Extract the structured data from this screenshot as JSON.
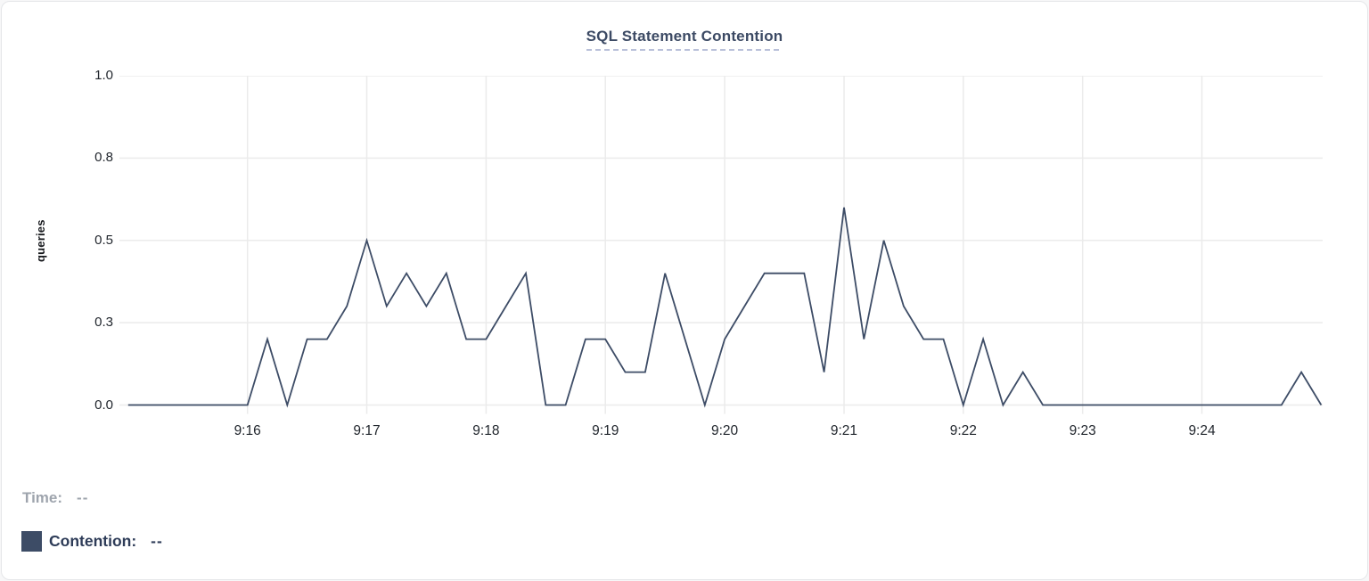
{
  "chart": {
    "title": "SQL Statement Contention"
  },
  "y_axis": {
    "label": "queries",
    "tick_labels": [
      "1.0",
      "0.8",
      "0.5",
      "0.3",
      "0.0"
    ],
    "tick_values": [
      1.0,
      0.75,
      0.5,
      0.25,
      0
    ]
  },
  "x_axis": {
    "tick_labels": [
      "9:16",
      "9:17",
      "9:18",
      "9:19",
      "9:20",
      "9:21",
      "9:22",
      "9:23",
      "9:24"
    ]
  },
  "legend": {
    "time_label": "Time:",
    "time_value": "--",
    "contention_label": "Contention:",
    "contention_value": "--"
  },
  "colors": {
    "line": "#3d4c66",
    "swatch": "#3d4c66",
    "grid": "#ebebeb",
    "title": "#3c4a64",
    "title_underline": "#b9c0d9",
    "time_text": "#9ea4ad",
    "contention_text": "#2e3c58",
    "axis_text": "#22272e"
  },
  "chart_data": {
    "type": "line",
    "title": "SQL Statement Contention",
    "xlabel": "",
    "ylabel": "queries",
    "ylim": [
      0,
      1.0
    ],
    "y_tick_values": [
      0,
      0.25,
      0.5,
      0.75,
      1.0
    ],
    "y_tick_labels": [
      "0.0",
      "0.3",
      "0.5",
      "0.8",
      "1.0"
    ],
    "x_start": "9:15:00",
    "x_end": "9:25:00",
    "x_interval_seconds": 10,
    "x_minute_tick_labels": [
      "9:16",
      "9:17",
      "9:18",
      "9:19",
      "9:20",
      "9:21",
      "9:22",
      "9:23",
      "9:24"
    ],
    "grid": true,
    "legend_position": "bottom-left",
    "series": [
      {
        "name": "Contention",
        "color": "#3d4c66",
        "values": [
          0,
          0,
          0,
          0,
          0,
          0,
          0,
          0.2,
          0,
          0.2,
          0.2,
          0.3,
          0.5,
          0.3,
          0.4,
          0.3,
          0.4,
          0.2,
          0.2,
          0.3,
          0.4,
          0,
          0,
          0.2,
          0.2,
          0.1,
          0.1,
          0.4,
          0.2,
          0,
          0.2,
          0.3,
          0.4,
          0.4,
          0.4,
          0.1,
          0.6,
          0.2,
          0.5,
          0.3,
          0.2,
          0.2,
          0,
          0.2,
          0,
          0.1,
          0,
          0,
          0,
          0,
          0,
          0,
          0,
          0,
          0,
          0,
          0,
          0,
          0,
          0.1,
          0
        ]
      }
    ]
  }
}
